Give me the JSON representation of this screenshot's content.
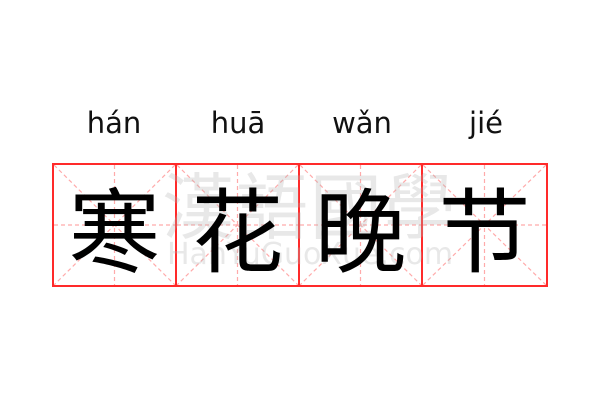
{
  "characters": [
    {
      "hanzi": "寒",
      "pinyin": "hán"
    },
    {
      "hanzi": "花",
      "pinyin": "huā"
    },
    {
      "hanzi": "晚",
      "pinyin": "wǎn"
    },
    {
      "hanzi": "节",
      "pinyin": "jié"
    }
  ],
  "watermark": {
    "cn": "漢語國學",
    "en": "HanYuGuoXue.com"
  },
  "colors": {
    "grid_border": "#ff2a2a",
    "guide_lines": "#ffaaaa",
    "text": "#000000"
  }
}
